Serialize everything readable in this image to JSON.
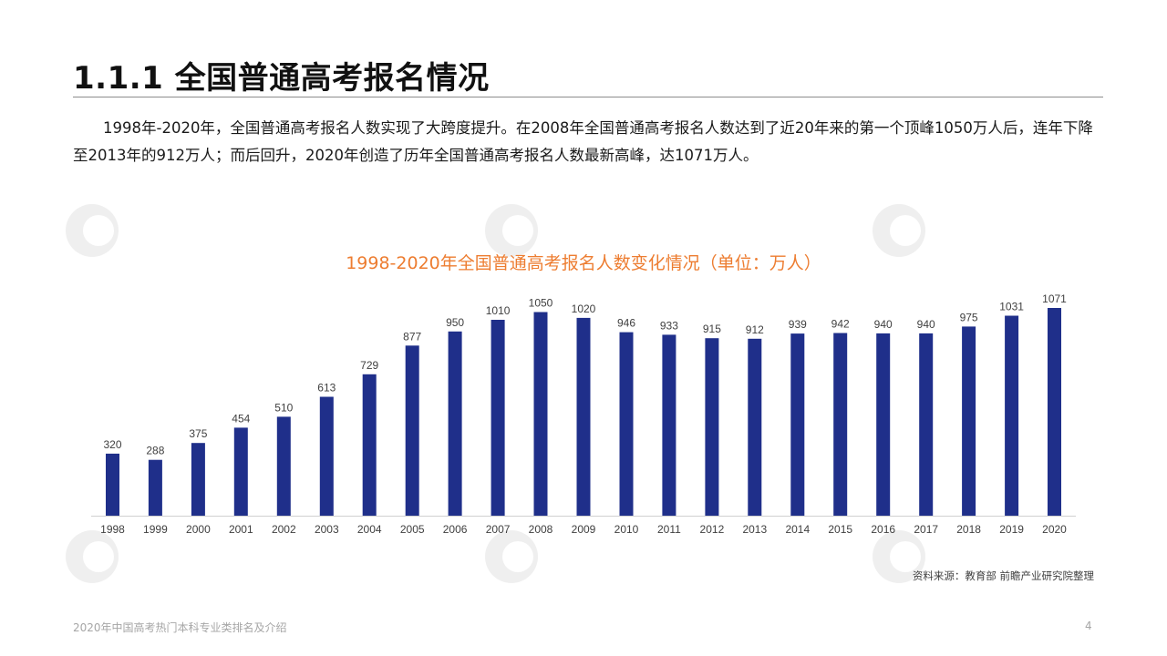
{
  "page": {
    "title": "1.1.1 全国普通高考报名情况",
    "intro": "1998年-2020年，全国普通高考报名人数实现了大跨度提升。在2008年全国普通高考报名人数达到了近20年来的第一个顶峰1050万人后，连年下降至2013年的912万人；而后回升，2020年创造了历年全国普通高考报名人数最新高峰，达1071万人。",
    "source": "资料来源：教育部 前瞻产业研究院整理",
    "footer_doc": "2020年中国高考热门本科专业类排名及介绍",
    "page_number": "4",
    "watermark_text": "前瞻产业研究院"
  },
  "colors": {
    "bar": "#1f2f8a",
    "chart_title": "#ed7d31",
    "axis": "#d0d0d0",
    "label": "#404040"
  },
  "chart_data": {
    "type": "bar",
    "title": "1998-2020年全国普通高考报名人数变化情况（单位：万人）",
    "xlabel": "",
    "ylabel": "",
    "categories": [
      "1998",
      "1999",
      "2000",
      "2001",
      "2002",
      "2003",
      "2004",
      "2005",
      "2006",
      "2007",
      "2008",
      "2009",
      "2010",
      "2011",
      "2012",
      "2013",
      "2014",
      "2015",
      "2016",
      "2017",
      "2018",
      "2019",
      "2020"
    ],
    "values": [
      320,
      288,
      375,
      454,
      510,
      613,
      729,
      877,
      950,
      1010,
      1050,
      1020,
      946,
      933,
      915,
      912,
      939,
      942,
      940,
      940,
      975,
      1031,
      1071
    ],
    "ylim": [
      0,
      1071
    ],
    "grid": false,
    "legend": "none"
  }
}
